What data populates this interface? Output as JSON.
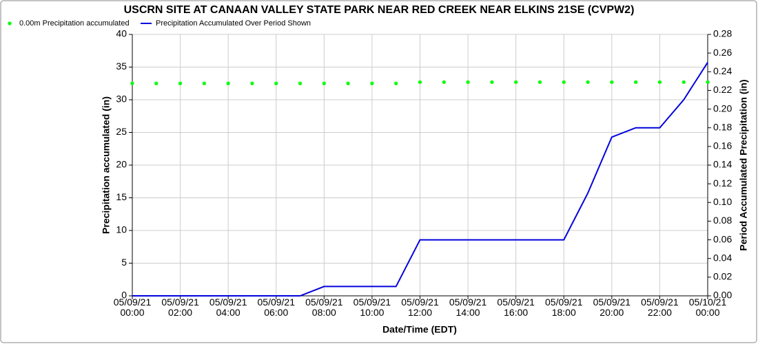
{
  "chart_data": {
    "type": "line",
    "title": "USCRN SITE AT CANAAN VALLEY STATE PARK NEAR RED CREEK NEAR ELKINS 21SE (CVPW2)",
    "x_label": "Date/Time (EDT)",
    "y_label": "Precipitation accumulated (in)",
    "y2_label": "Period Accumulated Precipitation (in)",
    "categories": [
      "05/09/21 00:00",
      null,
      "05/09/21 02:00",
      null,
      "05/09/21 04:00",
      null,
      "05/09/21 06:00",
      null,
      "05/09/21 08:00",
      null,
      "05/09/21 10:00",
      null,
      "05/09/21 12:00",
      null,
      "05/09/21 14:00",
      null,
      "05/09/21 16:00",
      null,
      "05/09/21 18:00",
      null,
      "05/09/21 20:00",
      null,
      "05/09/21 22:00",
      null,
      "05/10/21 00:00"
    ],
    "series": [
      {
        "name": "0.00m Precipitation accumulated",
        "color": "#00ff00",
        "mode": "markers",
        "values": [
          32.5,
          32.5,
          32.5,
          32.5,
          32.5,
          32.5,
          32.5,
          32.5,
          32.5,
          32.5,
          32.5,
          32.5,
          32.7,
          32.7,
          32.7,
          32.7,
          32.7,
          32.7,
          32.7,
          32.7,
          32.7,
          32.7,
          32.7,
          32.7,
          32.7
        ]
      },
      {
        "name": "Precipitation Accumulated Over Period Shown",
        "color": "#0000dd",
        "mode": "lines",
        "axis": "y2",
        "values": [
          0,
          0,
          0,
          0,
          0,
          0,
          0,
          0,
          0.01,
          0.01,
          0.01,
          0.01,
          0.06,
          0.06,
          0.06,
          0.06,
          0.06,
          0.06,
          0.06,
          0.11,
          0.17,
          0.18,
          0.18,
          0.21,
          0.25
        ]
      }
    ],
    "ylim": [
      0,
      40
    ],
    "yticks": [
      0,
      5,
      10,
      15,
      20,
      25,
      30,
      35,
      40
    ],
    "y2lim": [
      0,
      0.28
    ],
    "y2ticks": [
      {
        "value": 0,
        "label": "0.00"
      },
      0.02,
      0.04,
      0.06,
      0.08,
      {
        "value": 0.1,
        "label": "0.10"
      },
      0.12,
      0.14,
      0.16,
      0.18,
      {
        "value": 0.2,
        "label": "0.20"
      },
      0.22,
      0.24,
      0.26,
      0.28
    ],
    "grid": true,
    "legend": "top-left"
  }
}
